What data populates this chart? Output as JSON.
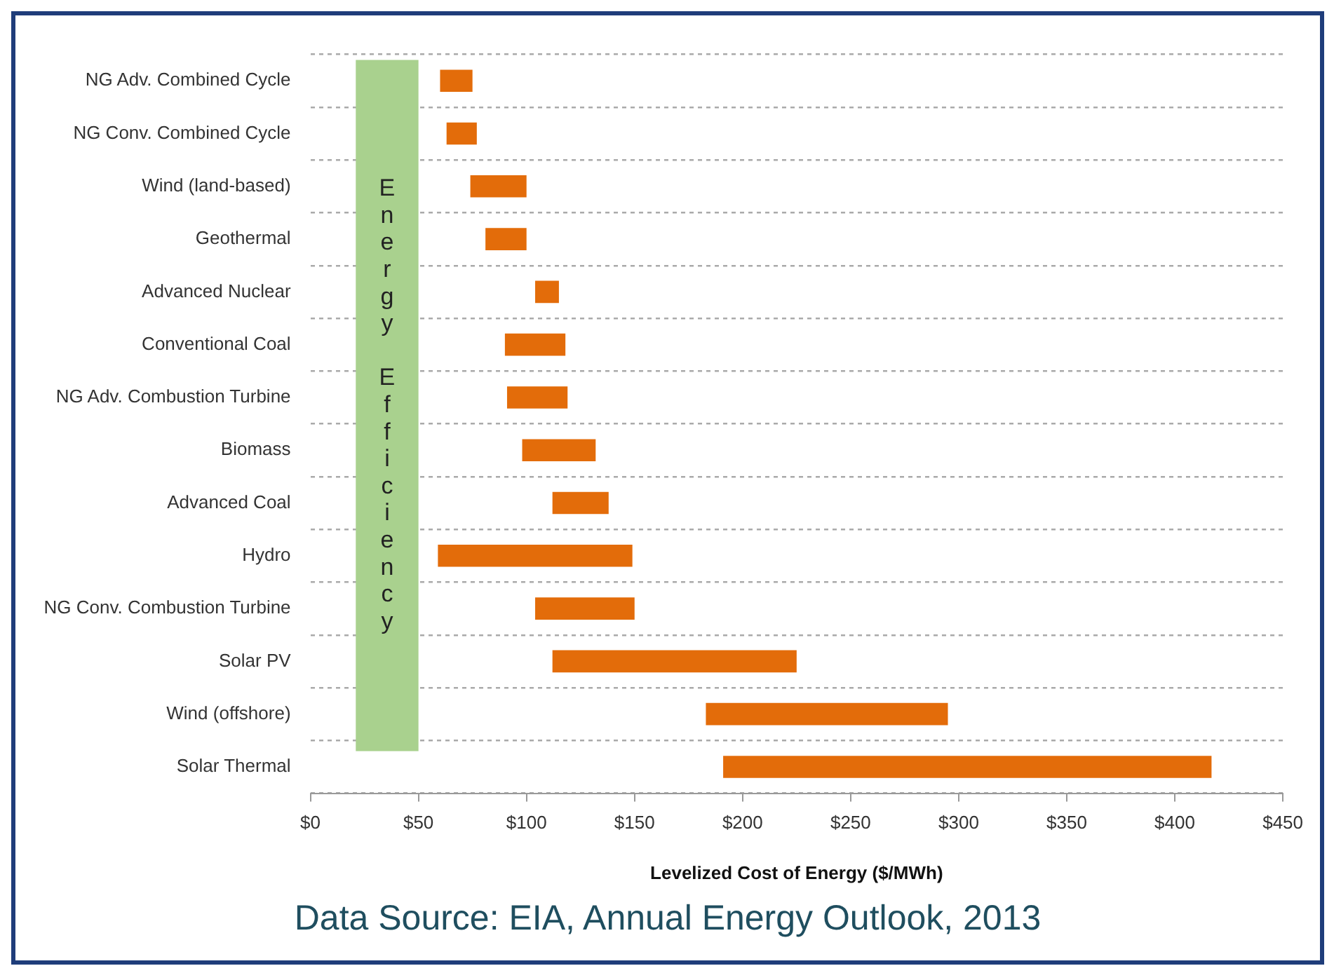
{
  "chart_data": {
    "type": "bar",
    "orientation": "horizontal",
    "categories": [
      "NG Adv. Combined Cycle",
      "NG Conv. Combined Cycle",
      "Wind (land-based)",
      "Geothermal",
      "Advanced Nuclear",
      "Conventional Coal",
      "NG Adv. Combustion Turbine",
      "Biomass",
      "Advanced Coal",
      "Hydro",
      "NG Conv. Combustion Turbine",
      "Solar PV",
      "Wind (offshore)",
      "Solar Thermal"
    ],
    "base": [
      60,
      63,
      74,
      81,
      104,
      90,
      91,
      98,
      112,
      59,
      104,
      112,
      183,
      191
    ],
    "values": [
      15,
      14,
      26,
      19,
      11,
      28,
      28,
      34,
      26,
      90,
      46,
      113,
      112,
      226
    ],
    "color": "#e36c0a",
    "xlim": [
      0,
      450
    ],
    "xticks": [
      {
        "value": 0,
        "label": "$0"
      },
      {
        "value": 50,
        "label": "$50"
      },
      {
        "value": 100,
        "label": "$100"
      },
      {
        "value": 150,
        "label": "$150"
      },
      {
        "value": 200,
        "label": "$200"
      },
      {
        "value": 250,
        "label": "$250"
      },
      {
        "value": 300,
        "label": "$300"
      },
      {
        "value": 350,
        "label": "$350"
      },
      {
        "value": 400,
        "label": "$400"
      },
      {
        "value": 450,
        "label": "$450"
      }
    ],
    "xlabel": "Levelized Cost of Energy ($/MWh)",
    "bands": [
      {
        "axis": "x",
        "from": 21,
        "to": 50,
        "label": "Energy Efficiency",
        "color": "#a9d18e"
      }
    ],
    "grid": "y",
    "legend": false,
    "annotations": [
      "Data Source: EIA, Annual Energy Outlook, 2013"
    ]
  }
}
